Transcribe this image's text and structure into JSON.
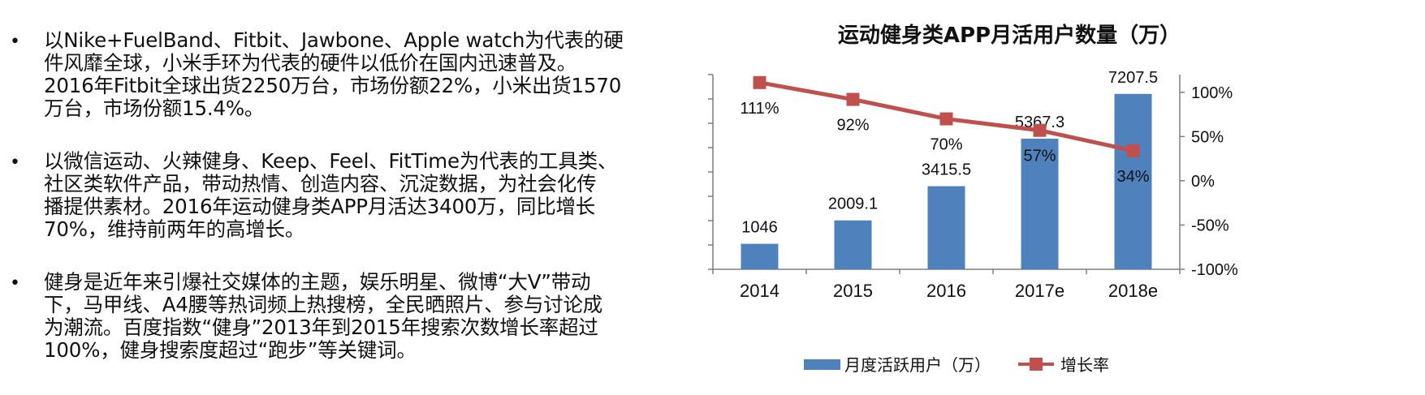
{
  "bullets": [
    {
      "lines": [
        "以Nike+FuelBand、Fitbit、Jawbone、Apple watch为代表的硬",
        "件风靡全球，小米手环为代表的硬件以低价在国内迅速普及。",
        "2016年Fitbit全球出货2250万台，市场份额22%，小米出货1570",
        "万台，市场份额15.4%。"
      ]
    },
    {
      "lines": [
        "以微信运动、火辣健身、Keep、Feel、FitTime为代表的工具类、",
        "社区类软件产品，带动热情、创造内容、沉淀数据，为社会化传",
        "播提供素材。2016年运动健身类APP月活达3400万，同比增长",
        "70%，维持前两年的高增长。"
      ]
    },
    {
      "lines": [
        "健身是近年来引爆社交媒体的主题，娱乐明星、微博“大V”带动",
        "下，马甲线、A4腰等热词频上热搜榜，全民晒照片、参与讨论成",
        "为潮流。百度指数“健身”2013年到2015年搜索次数增长率超过",
        "100%，健身搜索度超过“跑步”等关键词。"
      ]
    }
  ],
  "chart_data": {
    "type": "bar",
    "title": "运动健身类APP月活用户数量（万）",
    "categories": [
      "2014",
      "2015",
      "2016",
      "2017e",
      "2018e"
    ],
    "series": [
      {
        "name": "月度活跃用户（万）",
        "type": "bar",
        "axis": "left",
        "values": [
          1046,
          2009.1,
          3415.5,
          5367.3,
          7207.5
        ],
        "labels": [
          "1046",
          "2009.1",
          "3415.5",
          "5367.3",
          "7207.5"
        ],
        "color": "#4F81BD"
      },
      {
        "name": "增长率",
        "type": "line",
        "axis": "right",
        "values": [
          111,
          92,
          70,
          57,
          34
        ],
        "labels": [
          "111%",
          "92%",
          "70%",
          "57%",
          "34%"
        ],
        "color": "#C0504D"
      }
    ],
    "ylim": [
      0,
      8000
    ],
    "yticks": [
      "0",
      "1000",
      "2000",
      "3000",
      "4000",
      "5000",
      "6000",
      "7000",
      "8000"
    ],
    "y2lim": [
      -100,
      120
    ],
    "y2ticks": [
      "-100%",
      "-50%",
      "0%",
      "50%",
      "100%"
    ],
    "grid": false,
    "legend": "bottom"
  }
}
